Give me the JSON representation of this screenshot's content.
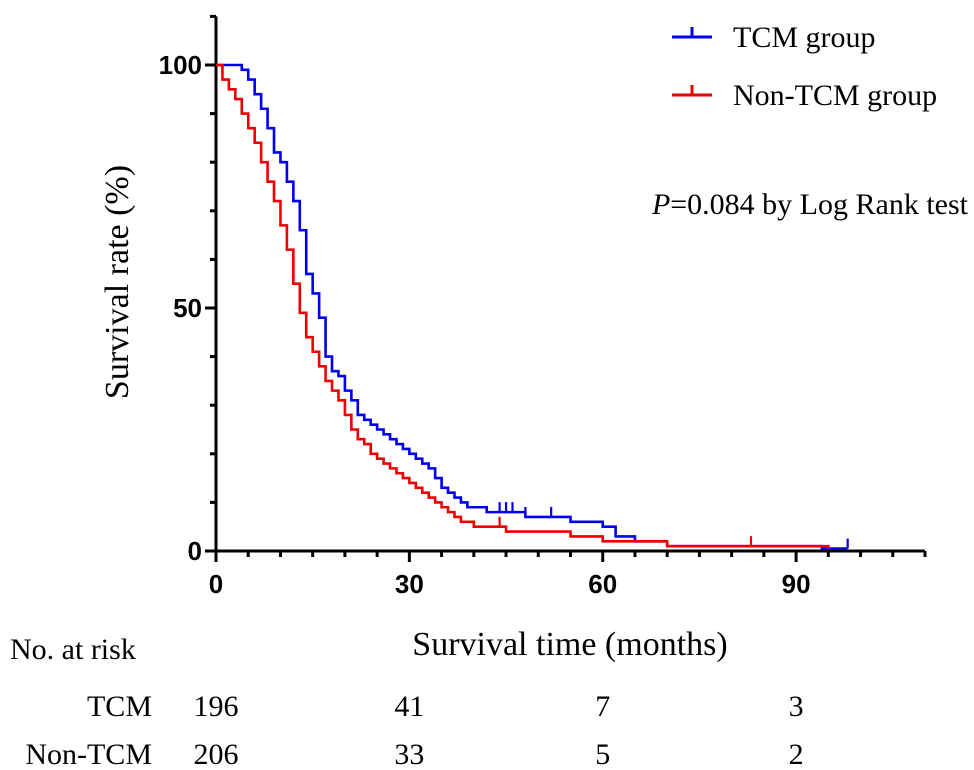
{
  "chart_data": {
    "type": "line",
    "subtype": "kaplan-meier",
    "xlabel": "Survival time (months)",
    "ylabel": "Survival rate (%)",
    "xlim": [
      0,
      110
    ],
    "ylim": [
      0,
      110
    ],
    "x_ticks": [
      0,
      30,
      60,
      90
    ],
    "y_ticks": [
      0,
      50,
      100
    ],
    "x_minor_step": 5,
    "y_minor_step": 10,
    "legend_position": "top-right",
    "annotation": {
      "italic": "P",
      "text": "=0.084 by Log Rank test"
    },
    "series": [
      {
        "name": "TCM group",
        "color": "#0000ee",
        "x": [
          0,
          4,
          5,
          6,
          7,
          8,
          9,
          10,
          11,
          12,
          13,
          14,
          15,
          16,
          17,
          18,
          19,
          20,
          21,
          22,
          23,
          24,
          25,
          26,
          27,
          28,
          29,
          30,
          31,
          32,
          33,
          34,
          35,
          36,
          37,
          38,
          39,
          40,
          42,
          44,
          48,
          50,
          55,
          60,
          62,
          65,
          70,
          80,
          90,
          94,
          98
        ],
        "y": [
          100,
          99,
          97,
          94,
          91,
          87,
          82,
          80,
          76,
          72,
          66,
          57,
          53,
          48,
          40,
          37,
          36,
          33,
          31,
          28,
          27,
          26,
          25,
          24,
          23,
          22,
          21,
          20,
          19,
          18,
          17,
          15,
          13,
          12,
          11,
          10,
          9,
          9,
          8,
          8,
          7,
          7,
          6,
          5,
          3,
          2,
          1,
          1,
          1,
          0.5,
          0.5
        ],
        "censored_at": [
          44,
          45,
          46,
          48,
          52,
          98
        ]
      },
      {
        "name": "Non-TCM group",
        "color": "#ee0000",
        "x": [
          0,
          1,
          2,
          3,
          4,
          5,
          6,
          7,
          8,
          9,
          10,
          11,
          12,
          13,
          14,
          15,
          16,
          17,
          18,
          19,
          20,
          21,
          22,
          23,
          24,
          25,
          26,
          27,
          28,
          29,
          30,
          31,
          32,
          33,
          34,
          35,
          36,
          37,
          38,
          40,
          42,
          45,
          50,
          55,
          60,
          65,
          70,
          80,
          90,
          95
        ],
        "y": [
          100,
          97,
          95,
          93,
          90,
          87,
          84,
          80,
          76,
          72,
          67,
          62,
          55,
          49,
          44,
          41,
          38,
          35,
          33,
          31,
          28,
          25,
          23,
          22,
          20,
          19,
          18,
          17,
          16,
          15,
          14,
          13,
          12,
          11,
          10,
          9,
          8,
          7,
          6,
          5,
          5,
          4,
          4,
          3,
          2,
          2,
          1,
          1,
          1,
          0.5
        ],
        "censored_at": [
          44,
          83
        ]
      }
    ],
    "risk_table": {
      "title": "No. at risk",
      "rows": [
        {
          "label": "TCM",
          "values": [
            "196",
            "41",
            "7",
            "3"
          ]
        },
        {
          "label": "Non-TCM",
          "values": [
            "206",
            "33",
            "5",
            "2"
          ]
        }
      ]
    }
  }
}
